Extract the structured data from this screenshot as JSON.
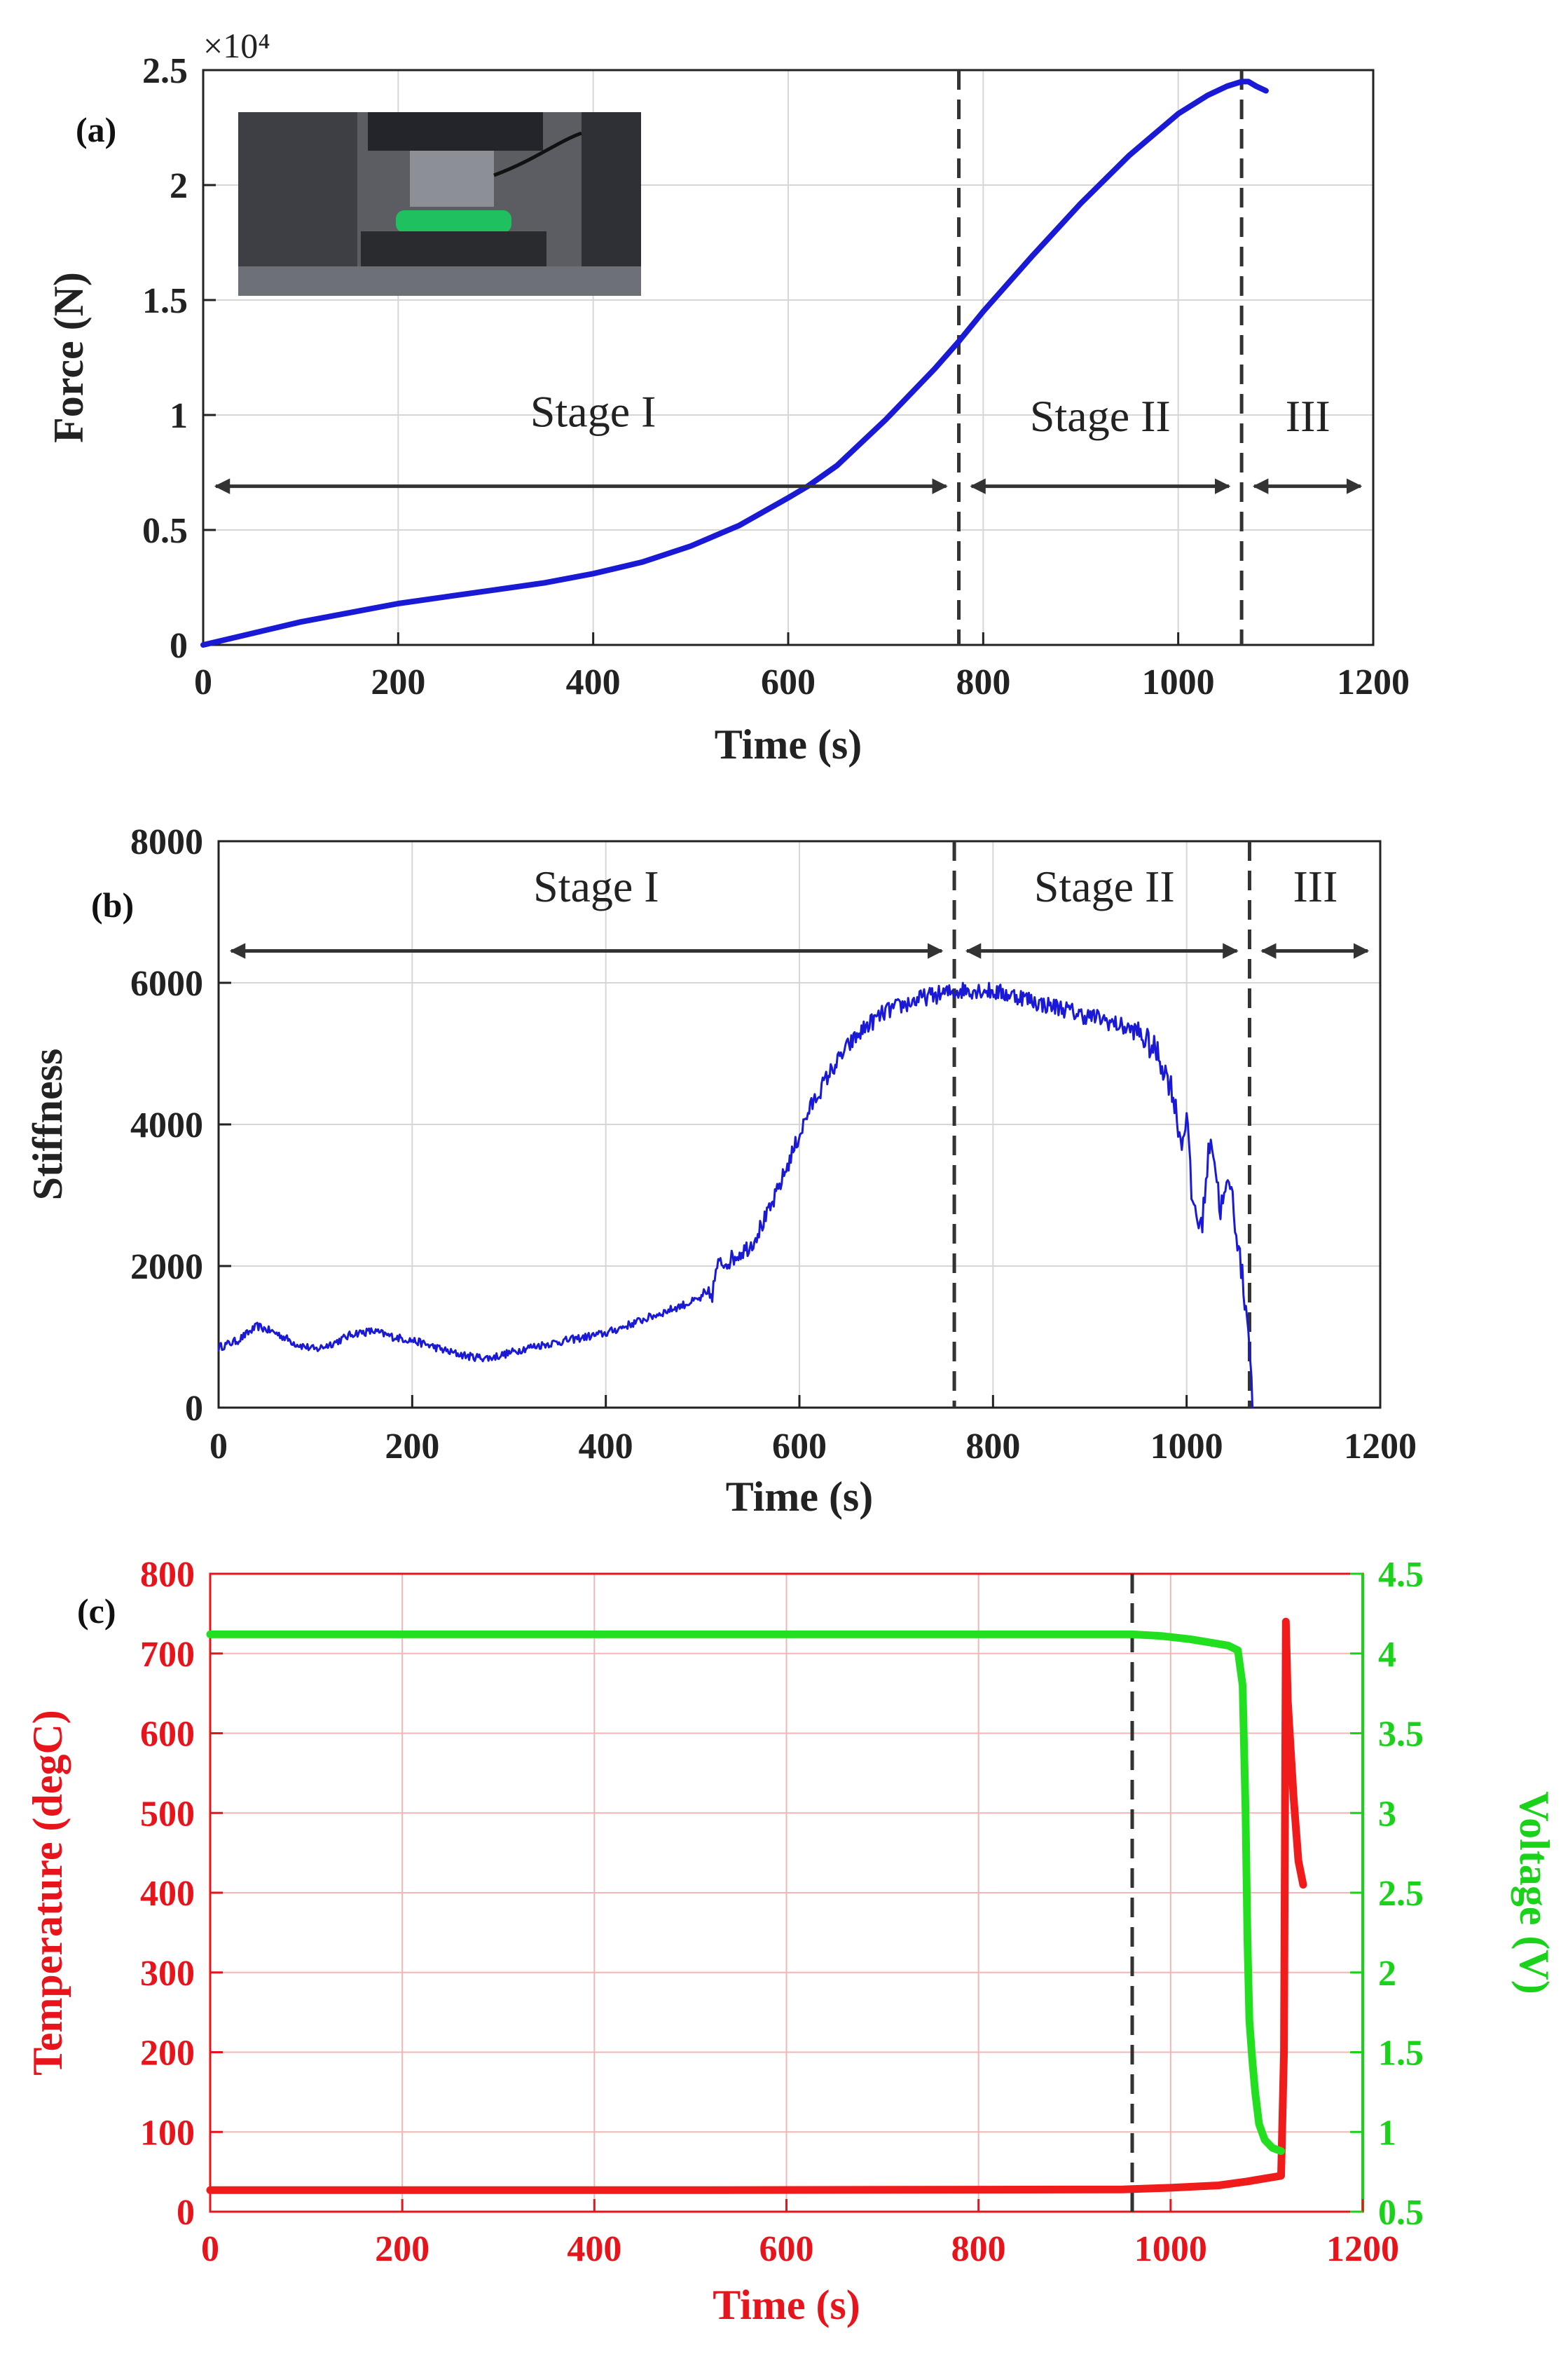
{
  "chart_data": [
    {
      "panel": "(a)",
      "type": "line",
      "xlabel": "Time (s)",
      "ylabel": "Force (N)",
      "exponent_label": "×10⁴",
      "xlim": [
        0,
        1200
      ],
      "ylim": [
        0,
        2.5
      ],
      "xticks": [
        0,
        200,
        400,
        600,
        800,
        1000,
        1200
      ],
      "yticks": [
        0,
        0.5,
        1,
        1.5,
        2,
        2.5
      ],
      "ytick_labels": [
        "0",
        "0.5",
        "1",
        "1.5",
        "2",
        "2.5"
      ],
      "grid": true,
      "inset": "photo of compression test fixture with green battery cell",
      "series": [
        {
          "name": "Force",
          "color": "#1a1ad6",
          "x": [
            0,
            50,
            100,
            150,
            200,
            250,
            300,
            350,
            400,
            450,
            500,
            550,
            600,
            620,
            650,
            700,
            750,
            775,
            800,
            850,
            900,
            950,
            1000,
            1030,
            1050,
            1065,
            1072,
            1080,
            1090
          ],
          "y": [
            0,
            0.05,
            0.1,
            0.14,
            0.18,
            0.21,
            0.24,
            0.27,
            0.31,
            0.36,
            0.43,
            0.52,
            0.64,
            0.69,
            0.78,
            0.98,
            1.2,
            1.32,
            1.45,
            1.69,
            1.92,
            2.13,
            2.31,
            2.39,
            2.43,
            2.45,
            2.45,
            2.43,
            2.41
          ]
        }
      ],
      "vlines": [
        775,
        1065
      ],
      "stages": [
        {
          "label": "Stage I",
          "x_start": 0,
          "x_end": 775,
          "label_x": 400,
          "arrow_y": 0.69,
          "label_y": 0.95
        },
        {
          "label": "Stage II",
          "x_start": 775,
          "x_end": 1065,
          "label_x": 920,
          "arrow_y": 0.69,
          "label_y": 0.93
        },
        {
          "label": "III",
          "x_start": 1065,
          "x_end": 1200,
          "label_x": 1133,
          "arrow_y": 0.69,
          "label_y": 0.93
        }
      ]
    },
    {
      "panel": "(b)",
      "type": "line",
      "xlabel": "Time (s)",
      "ylabel": "Stiffness",
      "xlim": [
        0,
        1200
      ],
      "ylim": [
        0,
        8000
      ],
      "xticks": [
        0,
        200,
        400,
        600,
        800,
        1000,
        1200
      ],
      "yticks": [
        0,
        2000,
        4000,
        6000,
        8000
      ],
      "grid": true,
      "series": [
        {
          "name": "Stiffness",
          "color": "#1a1ad6",
          "x": [
            0,
            20,
            40,
            60,
            80,
            100,
            120,
            140,
            160,
            180,
            200,
            220,
            240,
            260,
            280,
            300,
            320,
            340,
            360,
            380,
            400,
            420,
            440,
            460,
            480,
            500,
            510,
            515,
            530,
            550,
            570,
            590,
            610,
            630,
            650,
            670,
            690,
            710,
            730,
            750,
            770,
            790,
            810,
            830,
            850,
            870,
            890,
            910,
            930,
            950,
            970,
            985,
            995,
            1000,
            1005,
            1015,
            1025,
            1035,
            1045,
            1055,
            1065,
            1068
          ],
          "y": [
            850,
            950,
            1150,
            1050,
            900,
            820,
            920,
            1050,
            1080,
            1000,
            950,
            870,
            780,
            720,
            700,
            770,
            850,
            900,
            950,
            1000,
            1050,
            1150,
            1250,
            1350,
            1450,
            1550,
            1600,
            2000,
            2100,
            2300,
            2800,
            3500,
            4200,
            4700,
            5100,
            5400,
            5600,
            5700,
            5800,
            5850,
            5900,
            5900,
            5850,
            5800,
            5700,
            5650,
            5550,
            5500,
            5400,
            5300,
            5000,
            4500,
            3700,
            4200,
            3000,
            2500,
            3900,
            2800,
            3200,
            2100,
            1000,
            0
          ],
          "noise_amplitude": 250
        }
      ],
      "vlines": [
        760,
        1065
      ],
      "stages": [
        {
          "label": "Stage I",
          "x_start": 0,
          "x_end": 760,
          "label_x": 390,
          "arrow_y": 6450,
          "label_y": 7150
        },
        {
          "label": "Stage II",
          "x_start": 760,
          "x_end": 1065,
          "label_x": 915,
          "arrow_y": 6450,
          "label_y": 7150
        },
        {
          "label": "III",
          "x_start": 1065,
          "x_end": 1200,
          "label_x": 1133,
          "arrow_y": 6450,
          "label_y": 7150
        }
      ]
    },
    {
      "panel": "(c)",
      "type": "line",
      "xlabel": "Time (s)",
      "ylabel": "Temperature (degC)",
      "y2label": "Voltage (V)",
      "xlim": [
        0,
        1200
      ],
      "ylim": [
        0,
        800
      ],
      "y2lim": [
        0.5,
        4.5
      ],
      "xticks": [
        0,
        200,
        400,
        600,
        800,
        1000,
        1200
      ],
      "yticks": [
        0,
        100,
        200,
        300,
        400,
        500,
        600,
        700,
        800
      ],
      "y2ticks": [
        0.5,
        1,
        1.5,
        2,
        2.5,
        3,
        3.5,
        4,
        4.5
      ],
      "y2tick_labels": [
        "0.5",
        "1",
        "1.5",
        "2",
        "2.5",
        "3",
        "3.5",
        "4",
        "4.5"
      ],
      "grid": true,
      "axis_color_left": "#e8141b",
      "axis_color_right": "#19d219",
      "series": [
        {
          "name": "Temperature",
          "axis": "left",
          "color": "#f01c1c",
          "x": [
            0,
            500,
            950,
            1000,
            1050,
            1080,
            1100,
            1115,
            1118,
            1120,
            1122,
            1128,
            1133,
            1138
          ],
          "y": [
            27,
            27,
            28,
            30,
            33,
            38,
            42,
            45,
            200,
            740,
            640,
            520,
            440,
            410
          ]
        },
        {
          "name": "Voltage",
          "axis": "right",
          "color": "#22e020",
          "x": [
            0,
            500,
            960,
            990,
            1020,
            1040,
            1060,
            1070,
            1075,
            1078,
            1080,
            1082,
            1085,
            1088,
            1092,
            1098,
            1106,
            1115
          ],
          "y": [
            4.12,
            4.12,
            4.12,
            4.11,
            4.09,
            4.07,
            4.05,
            4.02,
            3.8,
            3.0,
            2.2,
            1.7,
            1.45,
            1.25,
            1.05,
            0.95,
            0.9,
            0.88
          ]
        }
      ],
      "vlines": [
        960
      ]
    }
  ]
}
